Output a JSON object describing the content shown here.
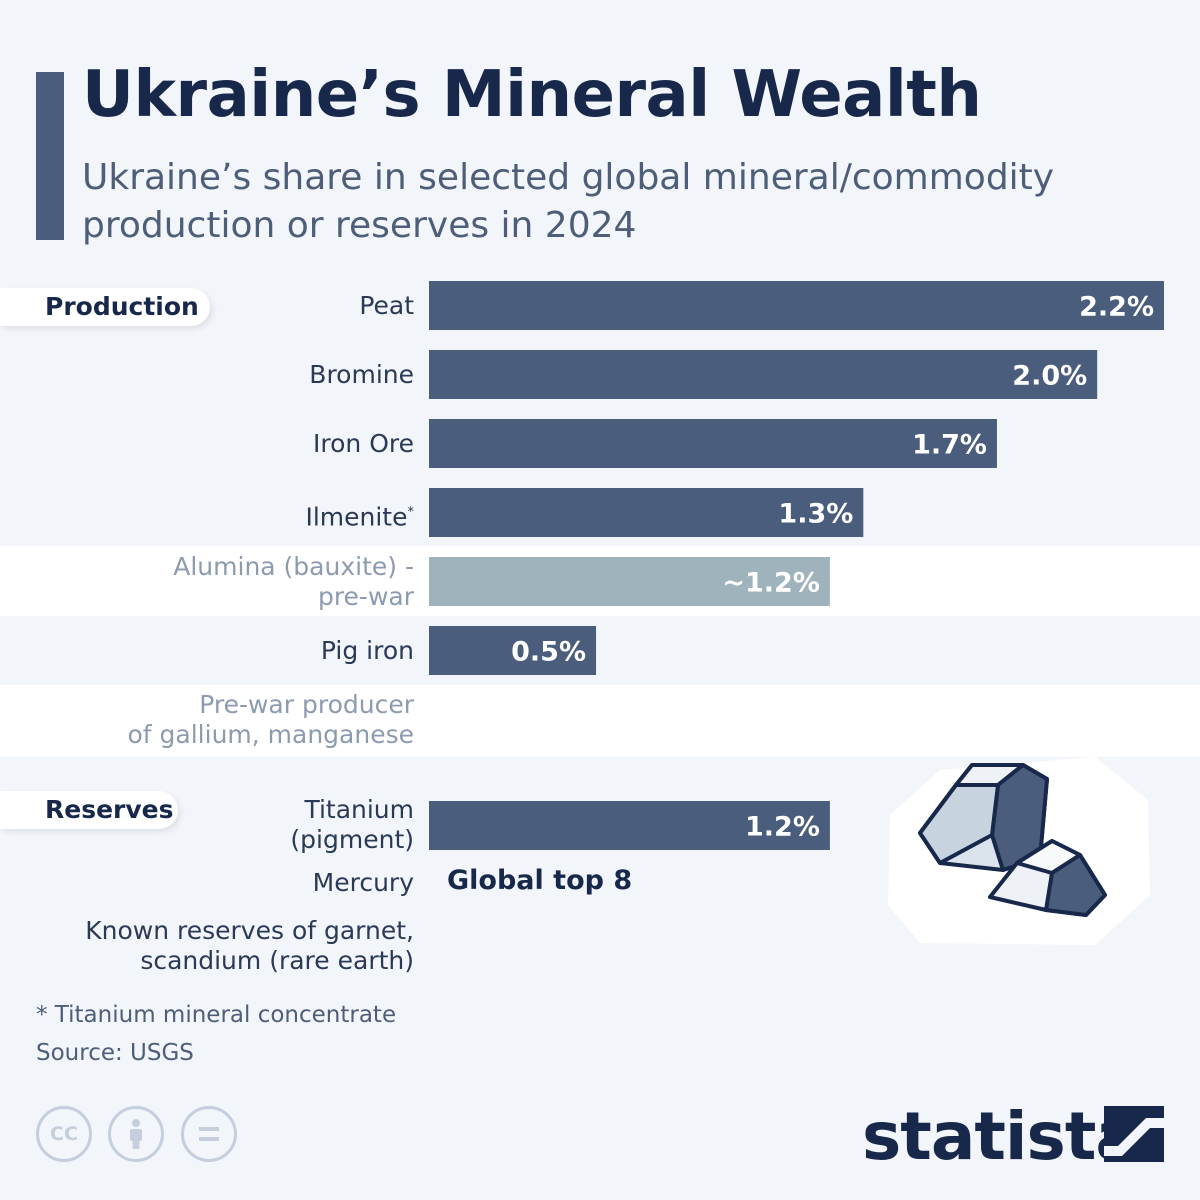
{
  "header": {
    "title": "Ukraine’s Mineral Wealth",
    "subtitle": "Ukraine’s share in selected global mineral/commodity production or reserves in 2024"
  },
  "sections": {
    "production": "Production",
    "reserves": "Reserves"
  },
  "labels": {
    "peat": "Peat",
    "bromine": "Bromine",
    "iron_ore": "Iron Ore",
    "ilmenite": "Ilmenite",
    "ilmenite_mark": "*",
    "alumina_1": "Alumina (bauxite) -",
    "alumina_2": "pre-war",
    "pig_iron": "Pig iron",
    "prewar_1": "Pre-war producer",
    "prewar_2": "of gallium, manganese",
    "titanium_1": "Titanium",
    "titanium_2": "(pigment)",
    "mercury": "Mercury",
    "known_1": "Known reserves of garnet,",
    "known_2": "scandium (rare earth)"
  },
  "callout": "Global top 8",
  "footnote": "* Titanium mineral concentrate",
  "source": "Source: USGS",
  "license_icons": {
    "cc": "CC",
    "by": "person-icon",
    "nd": "equals-icon"
  },
  "logo": "statista",
  "colors": {
    "bar": "#4a5d7c",
    "bar_prewar": "#9fb3bd",
    "accent": "#18284a",
    "background": "#f2f5fa"
  },
  "chart_data": {
    "type": "bar",
    "orientation": "horizontal",
    "unit": "%",
    "xlim": [
      0,
      2.2
    ],
    "categories": [
      "Peat",
      "Bromine",
      "Iron Ore",
      "Ilmenite*",
      "Alumina (bauxite) - pre-war",
      "Pig iron",
      "Titanium (pigment)"
    ],
    "values": [
      2.2,
      2.0,
      1.7,
      1.3,
      1.2,
      0.5,
      1.2
    ],
    "value_labels": [
      "2.2%",
      "2.0%",
      "1.7%",
      "1.3%",
      "~1.2%",
      "0.5%",
      "1.2%"
    ],
    "groups": [
      "Production",
      "Production",
      "Production",
      "Production",
      "Production",
      "Production",
      "Reserves"
    ],
    "prewar": [
      false,
      false,
      false,
      false,
      true,
      false,
      false
    ]
  }
}
